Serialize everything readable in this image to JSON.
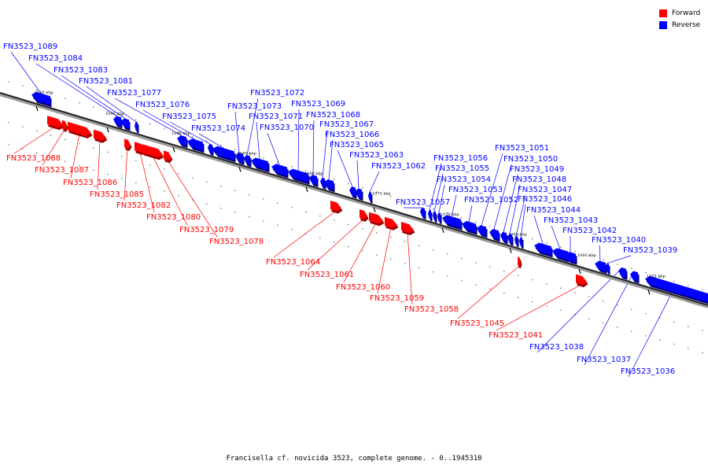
{
  "caption": "Francisella cf. novicida 3523, complete genome. - 0..1945310",
  "legend": [
    {
      "label": "Forward",
      "color": "#ff0000"
    },
    {
      "label": "Reverse",
      "color": "#0000ff"
    }
  ],
  "colors": {
    "forward": "#ff0000",
    "reverse": "#0000ff"
  },
  "ticks": [
    "1100 kbp",
    "1095 kbp",
    "1090 kbp",
    "1085 kbp",
    "1080 kbp",
    "1075 kbp",
    "1070 kbp",
    "1065 kbp",
    "1060 kbp",
    "1055 kbp"
  ],
  "genes": [
    {
      "label": "FN3523_1089",
      "strand": "reverse"
    },
    {
      "label": "FN3523_1088",
      "strand": "forward"
    },
    {
      "label": "FN3523_1087",
      "strand": "forward"
    },
    {
      "label": "FN3523_1086",
      "strand": "forward"
    },
    {
      "label": "FN3523_1085",
      "strand": "forward"
    },
    {
      "label": "FN3523_1084",
      "strand": "reverse"
    },
    {
      "label": "FN3523_1083",
      "strand": "reverse"
    },
    {
      "label": "FN3523_1082",
      "strand": "forward"
    },
    {
      "label": "FN3523_1081",
      "strand": "reverse"
    },
    {
      "label": "FN3523_1080",
      "strand": "forward"
    },
    {
      "label": "FN3523_1079",
      "strand": "forward"
    },
    {
      "label": "FN3523_1078",
      "strand": "forward"
    },
    {
      "label": "FN3523_1077",
      "strand": "reverse"
    },
    {
      "label": "FN3523_1076",
      "strand": "reverse"
    },
    {
      "label": "FN3523_1075",
      "strand": "reverse"
    },
    {
      "label": "FN3523_1074",
      "strand": "reverse"
    },
    {
      "label": "FN3523_1073",
      "strand": "reverse"
    },
    {
      "label": "FN3523_1072",
      "strand": "reverse"
    },
    {
      "label": "FN3523_1071",
      "strand": "reverse"
    },
    {
      "label": "FN3523_1070",
      "strand": "reverse"
    },
    {
      "label": "FN3523_1069",
      "strand": "reverse"
    },
    {
      "label": "FN3523_1068",
      "strand": "reverse"
    },
    {
      "label": "FN3523_1067",
      "strand": "reverse"
    },
    {
      "label": "FN3523_1066",
      "strand": "reverse"
    },
    {
      "label": "FN3523_1065",
      "strand": "reverse"
    },
    {
      "label": "FN3523_1064",
      "strand": "forward"
    },
    {
      "label": "FN3523_1063",
      "strand": "reverse"
    },
    {
      "label": "FN3523_1062",
      "strand": "reverse"
    },
    {
      "label": "FN3523_1061",
      "strand": "forward"
    },
    {
      "label": "FN3523_1060",
      "strand": "forward"
    },
    {
      "label": "FN3523_1059",
      "strand": "forward"
    },
    {
      "label": "FN3523_1058",
      "strand": "forward"
    },
    {
      "label": "FN3523_1057",
      "strand": "reverse"
    },
    {
      "label": "FN3523_1056",
      "strand": "reverse"
    },
    {
      "label": "FN3523_1055",
      "strand": "reverse"
    },
    {
      "label": "FN3523_1054",
      "strand": "reverse"
    },
    {
      "label": "FN3523_1053",
      "strand": "reverse"
    },
    {
      "label": "FN3523_1052",
      "strand": "reverse"
    },
    {
      "label": "FN3523_1051",
      "strand": "reverse"
    },
    {
      "label": "FN3523_1050",
      "strand": "reverse"
    },
    {
      "label": "FN3523_1049",
      "strand": "reverse"
    },
    {
      "label": "FN3523_1048",
      "strand": "reverse"
    },
    {
      "label": "FN3523_1047",
      "strand": "reverse"
    },
    {
      "label": "FN3523_1046",
      "strand": "reverse"
    },
    {
      "label": "FN3523_1045",
      "strand": "forward"
    },
    {
      "label": "FN3523_1044",
      "strand": "reverse"
    },
    {
      "label": "FN3523_1043",
      "strand": "reverse"
    },
    {
      "label": "FN3523_1042",
      "strand": "reverse"
    },
    {
      "label": "FN3523_1041",
      "strand": "forward"
    },
    {
      "label": "FN3523_1040",
      "strand": "reverse"
    },
    {
      "label": "FN3523_1039",
      "strand": "reverse"
    },
    {
      "label": "FN3523_1038",
      "strand": "reverse"
    },
    {
      "label": "FN3523_1037",
      "strand": "reverse"
    },
    {
      "label": "FN3523_1036",
      "strand": "reverse"
    }
  ]
}
